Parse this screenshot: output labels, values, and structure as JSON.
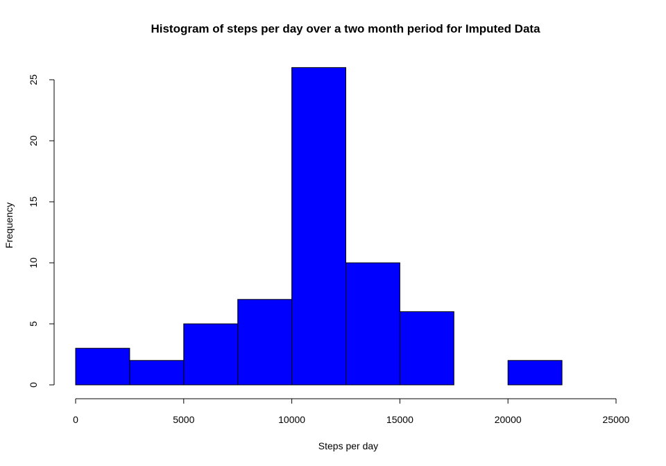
{
  "chart_data": {
    "type": "bar",
    "title": "Histogram of steps per day over a two month period for Imputed Data",
    "xlabel": "Steps per day",
    "ylabel": "Frequency",
    "bins": [
      {
        "from": 0,
        "to": 2500,
        "count": 3
      },
      {
        "from": 2500,
        "to": 5000,
        "count": 2
      },
      {
        "from": 5000,
        "to": 7500,
        "count": 5
      },
      {
        "from": 7500,
        "to": 10000,
        "count": 7
      },
      {
        "from": 10000,
        "to": 12500,
        "count": 26
      },
      {
        "from": 12500,
        "to": 15000,
        "count": 10
      },
      {
        "from": 15000,
        "to": 17500,
        "count": 6
      },
      {
        "from": 17500,
        "to": 20000,
        "count": 0
      },
      {
        "from": 20000,
        "to": 22500,
        "count": 2
      },
      {
        "from": 22500,
        "to": 25000,
        "count": 0
      }
    ],
    "xlim": [
      0,
      25000
    ],
    "ylim": [
      0,
      26
    ],
    "x_ticks": [
      0,
      5000,
      10000,
      15000,
      20000,
      25000
    ],
    "y_ticks": [
      0,
      5,
      10,
      15,
      20,
      25
    ],
    "bar_color": "#0000FF",
    "grid": false,
    "legend": false
  }
}
